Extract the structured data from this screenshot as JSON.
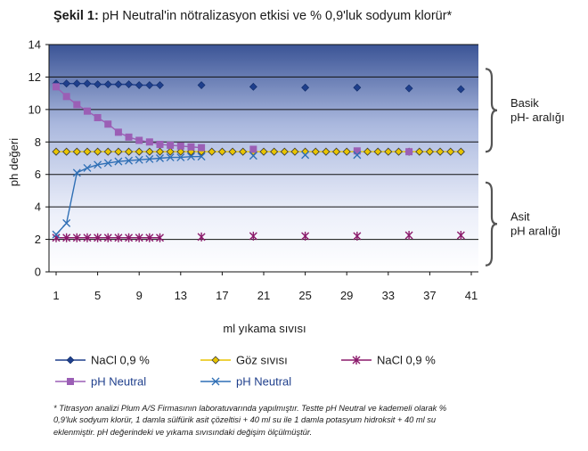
{
  "figure": {
    "title_prefix": "Şekil 1:",
    "title_rest": " pH Neutral'in nötralizasyon etkisi ve % 0,9'luk sodyum klorür*",
    "footnote": "* Titrasyon analizi Plum A/S Firmasının laboratuvarında yapılmıştır. Testte pH Neutral ve kademeli olarak % 0,9'luk sodyum klorür, 1 damla sülfürik asit çözeltisi + 40 ml su ile 1 damla potasyum hidroksit + 40 ml su eklenmiştir. pH değerindeki ve yıkama sıvısındaki değişim ölçülmüştür."
  },
  "chart_data": {
    "type": "line",
    "title": "pH Neutral'in nötralizasyon etkisi ve % 0,9'luk sodyum klorür*",
    "xlabel": "ml yıkama sıvısı",
    "ylabel": "ph değeri",
    "ylim": [
      0,
      14
    ],
    "xlim": [
      1,
      41
    ],
    "xticks": [
      1,
      5,
      9,
      13,
      17,
      21,
      25,
      29,
      33,
      37,
      41
    ],
    "yticks": [
      0,
      2,
      4,
      6,
      8,
      10,
      12,
      14
    ],
    "grid": true,
    "legend_position": "bottom",
    "brackets": [
      {
        "label_line1": "Basik",
        "label_line2": "pH- aralığı",
        "ymin": 7.4,
        "ymax": 12.5
      },
      {
        "label_line1": "Asit",
        "label_line2": "pH aralığı",
        "ymin": 0.4,
        "ymax": 5.5
      }
    ],
    "series": [
      {
        "name": "NaCl 0,9 %",
        "color": "#1f3f8c",
        "marker": "diamond",
        "line_segment": [
          1,
          11
        ],
        "x": [
          1,
          2,
          3,
          4,
          5,
          6,
          7,
          8,
          9,
          10,
          11,
          15,
          20,
          25,
          30,
          35,
          40
        ],
        "y": [
          11.6,
          11.6,
          11.6,
          11.6,
          11.55,
          11.55,
          11.55,
          11.55,
          11.5,
          11.5,
          11.5,
          11.5,
          11.4,
          11.35,
          11.35,
          11.3,
          11.25
        ]
      },
      {
        "name": "Göz sıvısı",
        "color": "#e8c400",
        "marker": "diamond-open",
        "line_segment": [
          1,
          40
        ],
        "x": [
          1,
          2,
          3,
          4,
          5,
          6,
          7,
          8,
          9,
          10,
          11,
          12,
          13,
          14,
          15,
          16,
          17,
          18,
          19,
          20,
          21,
          22,
          23,
          24,
          25,
          26,
          27,
          28,
          29,
          30,
          31,
          32,
          33,
          34,
          35,
          36,
          37,
          38,
          39,
          40
        ],
        "y": [
          7.4,
          7.4,
          7.4,
          7.4,
          7.4,
          7.4,
          7.4,
          7.4,
          7.4,
          7.4,
          7.4,
          7.4,
          7.4,
          7.4,
          7.4,
          7.4,
          7.4,
          7.4,
          7.4,
          7.4,
          7.4,
          7.4,
          7.4,
          7.4,
          7.4,
          7.4,
          7.4,
          7.4,
          7.4,
          7.4,
          7.4,
          7.4,
          7.4,
          7.4,
          7.4,
          7.4,
          7.4,
          7.4,
          7.4,
          7.4
        ]
      },
      {
        "name": "NaCl 0,9 %",
        "color": "#8b1a6b",
        "marker": "asterisk",
        "line_segment": [
          1,
          11
        ],
        "x": [
          1,
          2,
          3,
          4,
          5,
          6,
          7,
          8,
          9,
          10,
          11,
          15,
          20,
          25,
          30,
          35,
          40
        ],
        "y": [
          2.1,
          2.1,
          2.1,
          2.1,
          2.1,
          2.1,
          2.1,
          2.1,
          2.1,
          2.1,
          2.1,
          2.15,
          2.2,
          2.2,
          2.2,
          2.25,
          2.25
        ]
      },
      {
        "name": "pH Neutral",
        "color": "#9b5fb5",
        "marker": "square",
        "line_segment": [
          1,
          15
        ],
        "x": [
          1,
          2,
          3,
          4,
          5,
          6,
          7,
          8,
          9,
          10,
          11,
          12,
          13,
          14,
          15,
          20,
          30,
          35
        ],
        "y": [
          11.4,
          10.8,
          10.3,
          9.9,
          9.5,
          9.1,
          8.6,
          8.3,
          8.1,
          8.0,
          7.85,
          7.8,
          7.75,
          7.7,
          7.65,
          7.55,
          7.45,
          7.4
        ]
      },
      {
        "name": "pH Neutral",
        "color": "#2f6fb5",
        "marker": "x",
        "line_segment": [
          1,
          15
        ],
        "x": [
          1,
          2,
          3,
          4,
          5,
          6,
          7,
          8,
          9,
          10,
          11,
          12,
          13,
          14,
          15,
          20,
          25,
          30
        ],
        "y": [
          2.3,
          3.0,
          6.1,
          6.4,
          6.6,
          6.7,
          6.8,
          6.85,
          6.9,
          6.95,
          7.0,
          7.05,
          7.05,
          7.1,
          7.1,
          7.15,
          7.2,
          7.2
        ]
      }
    ]
  }
}
